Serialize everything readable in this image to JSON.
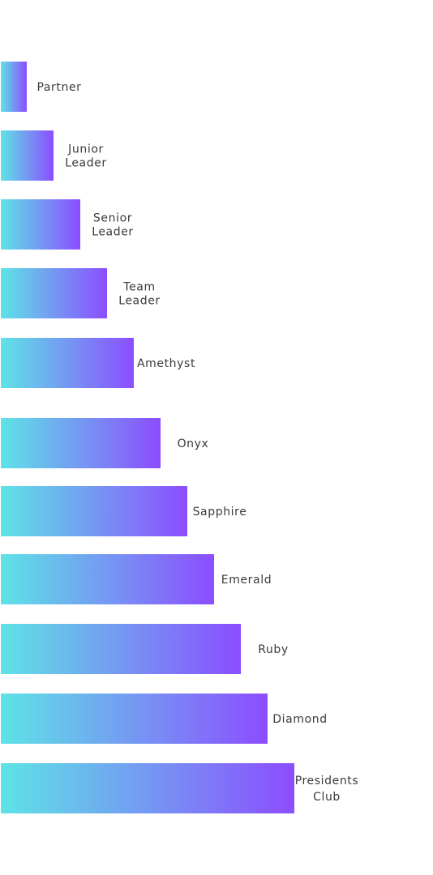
{
  "chart_data": {
    "type": "bar",
    "orientation": "horizontal",
    "categories": [
      "Partner",
      "Junior Leader",
      "Senior Leader",
      "Team Leader",
      "Amethyst",
      "Onyx",
      "Sapphire",
      "Emerald",
      "Ruby",
      "Diamond",
      "Presidents Club"
    ],
    "label_lines": [
      [
        "Partner"
      ],
      [
        "Junior",
        "Leader"
      ],
      [
        "Senior",
        "Leader"
      ],
      [
        "Team",
        "Leader"
      ],
      [
        "Amethyst"
      ],
      [
        "Onyx"
      ],
      [
        "Sapphire"
      ],
      [
        "Emerald"
      ],
      [
        "Ruby"
      ],
      [
        "Diamond"
      ],
      [
        "Presidents",
        "Club"
      ]
    ],
    "values": [
      1,
      2,
      3,
      4,
      5,
      6,
      7,
      8,
      9,
      10,
      11
    ],
    "xlim": [
      0,
      11
    ],
    "title": "",
    "xlabel": "",
    "ylabel": "",
    "grid": false,
    "legend": "none",
    "colors": {
      "gradient_start": "#5ee3e6",
      "gradient_end": "#8c4dff",
      "label": "#3a3a3a"
    }
  }
}
